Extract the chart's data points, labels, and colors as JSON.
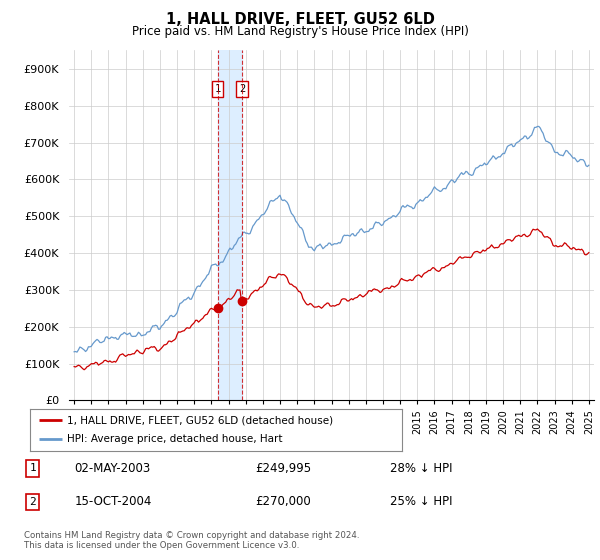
{
  "title": "1, HALL DRIVE, FLEET, GU52 6LD",
  "subtitle": "Price paid vs. HM Land Registry's House Price Index (HPI)",
  "legend_line1": "1, HALL DRIVE, FLEET, GU52 6LD (detached house)",
  "legend_line2": "HPI: Average price, detached house, Hart",
  "footnote": "Contains HM Land Registry data © Crown copyright and database right 2024.\nThis data is licensed under the Open Government Licence v3.0.",
  "sale1_label": "1",
  "sale1_date": "02-MAY-2003",
  "sale1_price": "£249,995",
  "sale1_hpi": "28% ↓ HPI",
  "sale2_label": "2",
  "sale2_date": "15-OCT-2004",
  "sale2_price": "£270,000",
  "sale2_hpi": "25% ↓ HPI",
  "red_color": "#cc0000",
  "blue_color": "#6699cc",
  "shade_color": "#ddeeff",
  "grid_color": "#cccccc",
  "background_color": "#ffffff",
  "ylim": [
    0,
    950000
  ],
  "yticks": [
    0,
    100000,
    200000,
    300000,
    400000,
    500000,
    600000,
    700000,
    800000,
    900000
  ],
  "ytick_labels": [
    "£0",
    "£100K",
    "£200K",
    "£300K",
    "£400K",
    "£500K",
    "£600K",
    "£700K",
    "£800K",
    "£900K"
  ],
  "sale1_x": 2003.37,
  "sale1_y": 249995,
  "sale2_x": 2004.79,
  "sale2_y": 270000,
  "vline1_x": 2003.37,
  "vline2_x": 2004.79,
  "xlim_left": 1994.7,
  "xlim_right": 2025.3
}
